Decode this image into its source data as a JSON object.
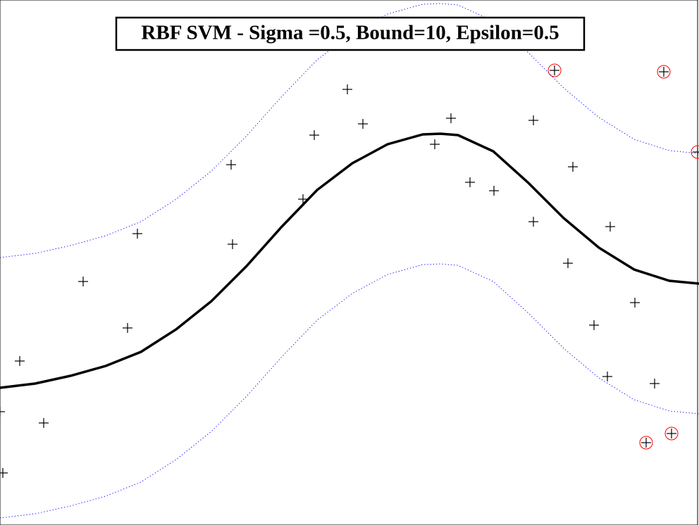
{
  "chart_data": {
    "type": "scatter",
    "title": "RBF SVM - Sigma =0.5, Bound=10, Epsilon=0.5",
    "xlim": [
      0,
      9.92
    ],
    "ylim": [
      0,
      7.46
    ],
    "series": [
      {
        "marker": "plus",
        "color": "#000000",
        "x": [
          0.04,
          0.0,
          0.28,
          0.62,
          1.18,
          1.81,
          1.95,
          3.28,
          3.3,
          4.3,
          4.46,
          4.93,
          5.15,
          6.17,
          6.4,
          6.67,
          7.01,
          7.57,
          7.57,
          7.87,
          8.06,
          8.13,
          8.43,
          8.62,
          8.66,
          9.01,
          9.29,
          9.42,
          9.9,
          9.17,
          9.53
        ],
        "values": [
          0.74,
          1.61,
          2.33,
          1.45,
          3.46,
          2.8,
          4.14,
          5.12,
          3.99,
          4.63,
          5.54,
          6.19,
          5.7,
          5.41,
          5.78,
          4.87,
          4.75,
          5.75,
          4.31,
          6.46,
          3.72,
          5.09,
          2.84,
          2.11,
          4.24,
          3.16,
          2.01,
          6.44,
          5.3,
          1.17,
          1.3
        ]
      },
      {
        "marker": "circle",
        "color": "#ff0000",
        "x": [
          7.87,
          9.42,
          9.9,
          9.17,
          9.53
        ],
        "values": [
          6.46,
          6.44,
          5.3,
          1.17,
          1.3
        ]
      }
    ],
    "lines": [
      {
        "color": "#000000",
        "style": "solid",
        "x": [
          0,
          0.5,
          1,
          1.5,
          2,
          2.5,
          3,
          3.5,
          4,
          4.5,
          5,
          5.5,
          6,
          6.25,
          6.5,
          7,
          7.5,
          8,
          8.5,
          9,
          9.5,
          9.92
        ],
        "values": [
          1.95,
          2.01,
          2.12,
          2.26,
          2.46,
          2.78,
          3.18,
          3.68,
          4.24,
          4.76,
          5.14,
          5.41,
          5.55,
          5.56,
          5.54,
          5.31,
          4.86,
          4.36,
          3.94,
          3.63,
          3.47,
          3.43
        ]
      },
      {
        "color": "#0000ff",
        "style": "dotted",
        "x": [
          0,
          0.5,
          1,
          1.5,
          2,
          2.5,
          3,
          3.5,
          4,
          4.5,
          5,
          5.5,
          6,
          6.25,
          6.5,
          7,
          7.5,
          8,
          8.5,
          9,
          9.5,
          9.92
        ],
        "values": [
          3.8,
          3.86,
          3.97,
          4.11,
          4.31,
          4.63,
          5.03,
          5.53,
          6.09,
          6.61,
          6.99,
          7.26,
          7.4,
          7.41,
          7.39,
          7.16,
          6.71,
          6.21,
          5.79,
          5.48,
          5.32,
          5.28
        ]
      },
      {
        "color": "#0000ff",
        "style": "dotted",
        "x": [
          0,
          0.5,
          1,
          1.5,
          2,
          2.5,
          3,
          3.5,
          4,
          4.5,
          5,
          5.5,
          6,
          6.25,
          6.5,
          7,
          7.5,
          8,
          8.5,
          9,
          9.5,
          9.92
        ],
        "values": [
          0.1,
          0.16,
          0.27,
          0.41,
          0.61,
          0.93,
          1.33,
          1.83,
          2.39,
          2.91,
          3.29,
          3.56,
          3.7,
          3.71,
          3.69,
          3.46,
          3.01,
          2.51,
          2.09,
          1.78,
          1.62,
          1.58
        ]
      }
    ]
  }
}
